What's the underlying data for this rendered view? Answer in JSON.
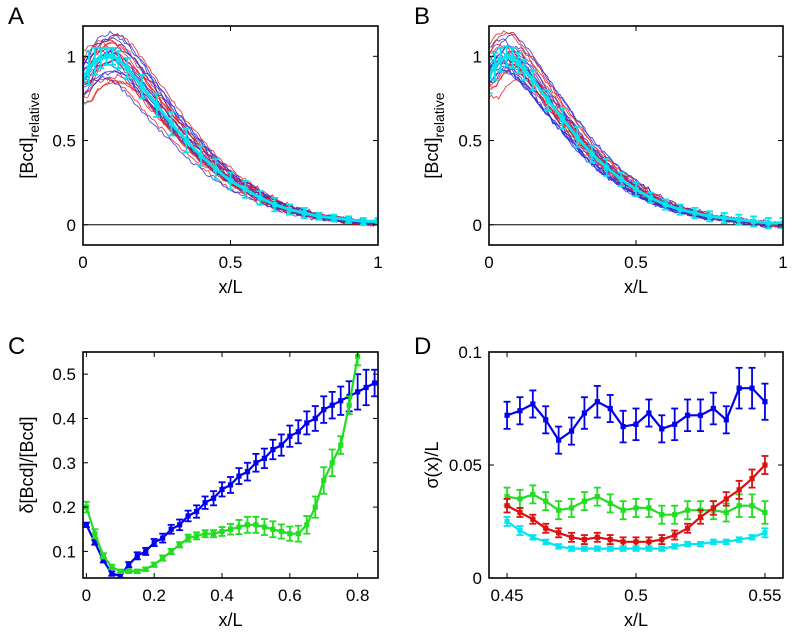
{
  "chart_data": [
    {
      "panel": "A",
      "type": "line",
      "xlabel": "x/L",
      "ylabel": "[Bcd]",
      "ylabel_sub": "relative",
      "xlim": [
        0,
        1
      ],
      "ylim": [
        -0.12,
        1.18
      ],
      "xticks": [
        0,
        0.5,
        1
      ],
      "xtick_labels": [
        "0",
        "0.5",
        "1"
      ],
      "yticks": [
        0,
        0.5,
        1
      ],
      "ytick_labels": [
        "0",
        "0.5",
        "1"
      ],
      "zero_line": true,
      "series": [
        {
          "name": "mean profile",
          "color": "#00e5ee",
          "x": [
            0,
            0.02,
            0.04,
            0.06,
            0.08,
            0.1,
            0.12,
            0.15,
            0.2,
            0.25,
            0.3,
            0.35,
            0.4,
            0.45,
            0.5,
            0.55,
            0.6,
            0.65,
            0.7,
            0.75,
            0.8,
            0.85,
            0.9,
            0.95,
            1.0
          ],
          "y": [
            0.86,
            0.93,
            0.97,
            0.99,
            1.0,
            1.0,
            0.98,
            0.93,
            0.82,
            0.71,
            0.6,
            0.5,
            0.41,
            0.33,
            0.26,
            0.21,
            0.16,
            0.12,
            0.09,
            0.07,
            0.05,
            0.04,
            0.03,
            0.02,
            0.02
          ],
          "err": [
            0.14,
            0.1,
            0.08,
            0.06,
            0.05,
            0.05,
            0.05,
            0.06,
            0.07,
            0.07,
            0.07,
            0.07,
            0.06,
            0.06,
            0.05,
            0.05,
            0.04,
            0.04,
            0.03,
            0.03,
            0.02,
            0.02,
            0.02,
            0.02,
            0.02
          ]
        }
      ]
    },
    {
      "panel": "B",
      "type": "line",
      "xlabel": "x/L",
      "ylabel": "[Bcd]",
      "ylabel_sub": "relative",
      "xlim": [
        0,
        1
      ],
      "ylim": [
        -0.12,
        1.18
      ],
      "xticks": [
        0,
        0.5,
        1
      ],
      "xtick_labels": [
        "0",
        "0.5",
        "1"
      ],
      "yticks": [
        0,
        0.5,
        1
      ],
      "ytick_labels": [
        "0",
        "0.5",
        "1"
      ],
      "zero_line": true,
      "series": [
        {
          "name": "mean profile",
          "color": "#00e5ee",
          "x": [
            0,
            0.02,
            0.04,
            0.06,
            0.08,
            0.1,
            0.12,
            0.15,
            0.2,
            0.25,
            0.3,
            0.35,
            0.4,
            0.45,
            0.5,
            0.55,
            0.6,
            0.65,
            0.7,
            0.75,
            0.8,
            0.85,
            0.9,
            0.95,
            1.0
          ],
          "y": [
            0.88,
            0.94,
            0.98,
            1.0,
            0.99,
            0.96,
            0.92,
            0.86,
            0.74,
            0.63,
            0.52,
            0.42,
            0.34,
            0.27,
            0.21,
            0.16,
            0.12,
            0.09,
            0.07,
            0.05,
            0.04,
            0.03,
            0.02,
            0.01,
            0.01
          ],
          "err": [
            0.1,
            0.08,
            0.07,
            0.06,
            0.06,
            0.06,
            0.06,
            0.06,
            0.06,
            0.06,
            0.06,
            0.05,
            0.05,
            0.04,
            0.04,
            0.03,
            0.03,
            0.03,
            0.03,
            0.03,
            0.03,
            0.03,
            0.03,
            0.03,
            0.03
          ]
        }
      ]
    },
    {
      "panel": "C",
      "type": "line",
      "xlabel": "x/L",
      "ylabel": "δ[Bcd]/[Bcd]",
      "xlim": [
        -0.01,
        0.86
      ],
      "ylim": [
        0.04,
        0.55
      ],
      "xticks": [
        0,
        0.2,
        0.4,
        0.6,
        0.8
      ],
      "xtick_labels": [
        "0",
        "0.2",
        "0.4",
        "0.6",
        "0.8"
      ],
      "yticks": [
        0.1,
        0.2,
        0.3,
        0.4,
        0.5
      ],
      "ytick_labels": [
        "0.1",
        "0.2",
        "0.3",
        "0.4",
        "0.5"
      ],
      "series": [
        {
          "name": "blue",
          "color": "#0000ee",
          "x": [
            0,
            0.025,
            0.05,
            0.075,
            0.1,
            0.125,
            0.15,
            0.175,
            0.2,
            0.225,
            0.25,
            0.275,
            0.3,
            0.325,
            0.35,
            0.375,
            0.4,
            0.425,
            0.45,
            0.475,
            0.5,
            0.525,
            0.55,
            0.575,
            0.6,
            0.625,
            0.65,
            0.675,
            0.7,
            0.725,
            0.75,
            0.775,
            0.8,
            0.825,
            0.85
          ],
          "y": [
            0.16,
            0.12,
            0.08,
            0.05,
            0.045,
            0.07,
            0.09,
            0.1,
            0.12,
            0.13,
            0.15,
            0.16,
            0.18,
            0.19,
            0.21,
            0.22,
            0.24,
            0.25,
            0.27,
            0.28,
            0.3,
            0.31,
            0.33,
            0.34,
            0.36,
            0.37,
            0.39,
            0.4,
            0.42,
            0.43,
            0.44,
            0.45,
            0.46,
            0.47,
            0.48
          ],
          "err": [
            0.005,
            0.005,
            0.005,
            0.005,
            0.005,
            0.006,
            0.008,
            0.008,
            0.008,
            0.01,
            0.01,
            0.012,
            0.012,
            0.014,
            0.014,
            0.016,
            0.016,
            0.018,
            0.018,
            0.02,
            0.02,
            0.022,
            0.022,
            0.024,
            0.024,
            0.026,
            0.026,
            0.028,
            0.03,
            0.03,
            0.032,
            0.034,
            0.04,
            0.04,
            0.03
          ]
        },
        {
          "name": "green",
          "color": "#22dd22",
          "x": [
            0,
            0.025,
            0.05,
            0.075,
            0.1,
            0.125,
            0.15,
            0.175,
            0.2,
            0.225,
            0.25,
            0.275,
            0.3,
            0.325,
            0.35,
            0.375,
            0.4,
            0.425,
            0.45,
            0.475,
            0.5,
            0.525,
            0.55,
            0.575,
            0.6,
            0.625,
            0.65,
            0.675,
            0.7,
            0.725,
            0.75,
            0.775,
            0.8
          ],
          "y": [
            0.2,
            0.14,
            0.09,
            0.065,
            0.055,
            0.055,
            0.055,
            0.06,
            0.07,
            0.085,
            0.1,
            0.115,
            0.13,
            0.135,
            0.14,
            0.14,
            0.145,
            0.15,
            0.155,
            0.16,
            0.16,
            0.155,
            0.15,
            0.145,
            0.14,
            0.14,
            0.16,
            0.2,
            0.26,
            0.3,
            0.34,
            0.43,
            0.54
          ],
          "err": [
            0.012,
            0.01,
            0.006,
            0.005,
            0.004,
            0.004,
            0.004,
            0.004,
            0.005,
            0.006,
            0.006,
            0.006,
            0.008,
            0.008,
            0.008,
            0.008,
            0.01,
            0.012,
            0.016,
            0.018,
            0.018,
            0.018,
            0.018,
            0.016,
            0.016,
            0.018,
            0.02,
            0.024,
            0.03,
            0.03,
            0.02,
            0.02,
            0.02
          ]
        }
      ]
    },
    {
      "panel": "D",
      "type": "line",
      "xlabel": "x/L",
      "ylabel": "σ(x)/L",
      "xlim": [
        0.443,
        0.557
      ],
      "ylim": [
        0,
        0.1
      ],
      "xticks": [
        0.45,
        0.5,
        0.55
      ],
      "xtick_labels": [
        "0.45",
        "0.5",
        "0.55"
      ],
      "yticks": [
        0,
        0.05,
        0.1
      ],
      "ytick_labels": [
        "0",
        "0.05",
        "0.1"
      ],
      "series": [
        {
          "name": "blue",
          "color": "#0000ee",
          "x": [
            0.45,
            0.455,
            0.46,
            0.465,
            0.47,
            0.475,
            0.48,
            0.485,
            0.49,
            0.495,
            0.5,
            0.505,
            0.51,
            0.515,
            0.52,
            0.525,
            0.53,
            0.535,
            0.54,
            0.545,
            0.55
          ],
          "y": [
            0.072,
            0.074,
            0.077,
            0.07,
            0.061,
            0.065,
            0.073,
            0.078,
            0.075,
            0.067,
            0.068,
            0.073,
            0.066,
            0.068,
            0.072,
            0.072,
            0.075,
            0.07,
            0.084,
            0.084,
            0.078
          ],
          "err": [
            0.006,
            0.006,
            0.006,
            0.006,
            0.006,
            0.006,
            0.007,
            0.007,
            0.006,
            0.007,
            0.007,
            0.006,
            0.006,
            0.007,
            0.007,
            0.007,
            0.007,
            0.006,
            0.009,
            0.009,
            0.008
          ]
        },
        {
          "name": "green",
          "color": "#22dd22",
          "x": [
            0.45,
            0.455,
            0.46,
            0.465,
            0.47,
            0.475,
            0.48,
            0.485,
            0.49,
            0.495,
            0.5,
            0.505,
            0.51,
            0.515,
            0.52,
            0.525,
            0.53,
            0.535,
            0.54,
            0.545,
            0.55
          ],
          "y": [
            0.036,
            0.035,
            0.037,
            0.034,
            0.03,
            0.031,
            0.034,
            0.036,
            0.033,
            0.03,
            0.031,
            0.031,
            0.028,
            0.028,
            0.03,
            0.03,
            0.03,
            0.029,
            0.032,
            0.032,
            0.029
          ],
          "err": [
            0.004,
            0.004,
            0.004,
            0.004,
            0.004,
            0.004,
            0.004,
            0.004,
            0.004,
            0.004,
            0.004,
            0.004,
            0.004,
            0.004,
            0.004,
            0.004,
            0.004,
            0.004,
            0.005,
            0.005,
            0.005
          ]
        },
        {
          "name": "red",
          "color": "#dd1111",
          "x": [
            0.45,
            0.455,
            0.46,
            0.465,
            0.47,
            0.475,
            0.48,
            0.485,
            0.49,
            0.495,
            0.5,
            0.505,
            0.51,
            0.515,
            0.52,
            0.525,
            0.53,
            0.535,
            0.54,
            0.545,
            0.55
          ],
          "y": [
            0.032,
            0.029,
            0.026,
            0.022,
            0.02,
            0.018,
            0.017,
            0.018,
            0.017,
            0.016,
            0.016,
            0.016,
            0.017,
            0.019,
            0.022,
            0.027,
            0.031,
            0.035,
            0.039,
            0.044,
            0.05
          ],
          "err": [
            0.003,
            0.002,
            0.002,
            0.002,
            0.002,
            0.002,
            0.002,
            0.002,
            0.002,
            0.002,
            0.002,
            0.002,
            0.002,
            0.002,
            0.002,
            0.003,
            0.003,
            0.003,
            0.004,
            0.004,
            0.004
          ]
        },
        {
          "name": "cyan",
          "color": "#00e5ee",
          "x": [
            0.45,
            0.455,
            0.46,
            0.465,
            0.47,
            0.475,
            0.48,
            0.485,
            0.49,
            0.495,
            0.5,
            0.505,
            0.51,
            0.515,
            0.52,
            0.525,
            0.53,
            0.535,
            0.54,
            0.545,
            0.55
          ],
          "y": [
            0.025,
            0.021,
            0.018,
            0.016,
            0.014,
            0.013,
            0.013,
            0.013,
            0.013,
            0.013,
            0.013,
            0.013,
            0.013,
            0.014,
            0.015,
            0.015,
            0.016,
            0.016,
            0.017,
            0.018,
            0.02
          ],
          "err": [
            0.002,
            0.002,
            0.001,
            0.001,
            0.001,
            0.001,
            0.001,
            0.001,
            0.001,
            0.001,
            0.001,
            0.001,
            0.001,
            0.001,
            0.001,
            0.001,
            0.001,
            0.001,
            0.001,
            0.001,
            0.002
          ]
        }
      ]
    }
  ]
}
